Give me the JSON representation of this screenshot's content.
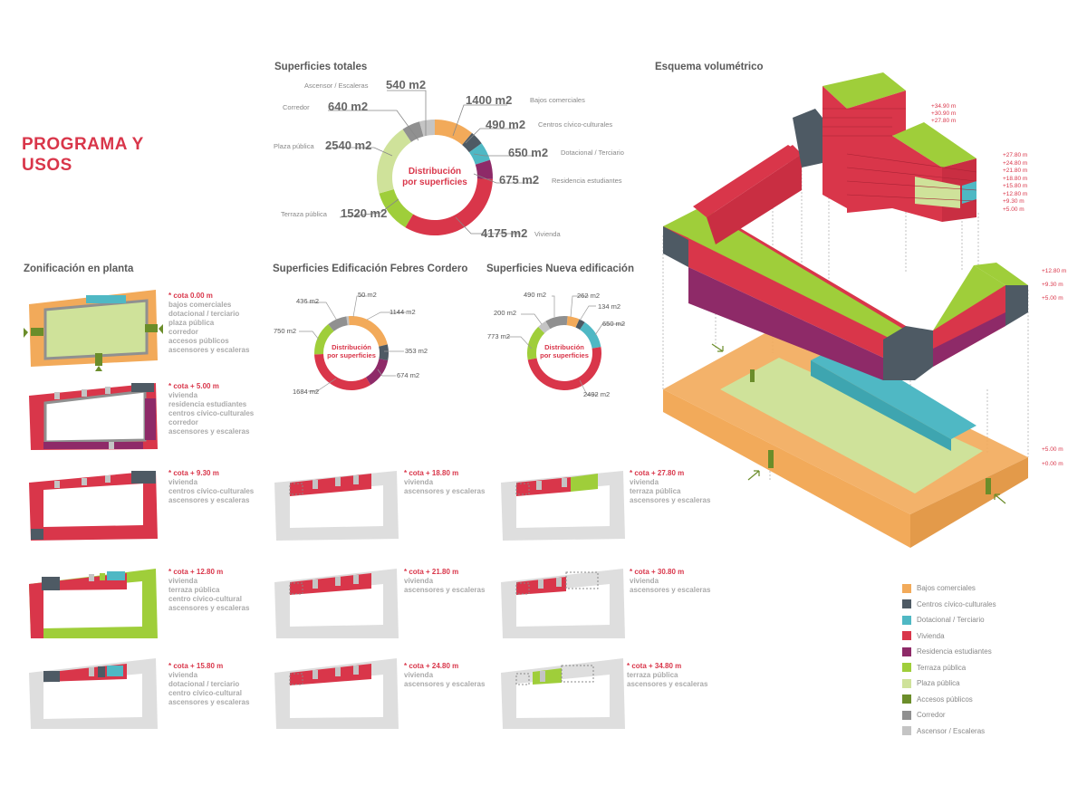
{
  "title": "PROGRAMA Y\nUSOS",
  "colors": {
    "bajos": "#f2aa5a",
    "civico": "#4e5a64",
    "dotacional": "#4fb8c4",
    "vivienda": "#d9364a",
    "residencia": "#8e2a68",
    "terraza": "#9fce3a",
    "plaza": "#cfe29a",
    "accesos": "#6b8d2a",
    "corredor": "#909090",
    "ascensor": "#c4c4c4"
  },
  "superficies_totales": {
    "title": "Superficies totales",
    "center_label": [
      "Distribución",
      "por superficies"
    ],
    "items": [
      {
        "value": "1400 m2",
        "label": "Bajos comerciales"
      },
      {
        "value": "490 m2",
        "label": "Centros cívico-culturales"
      },
      {
        "value": "650 m2",
        "label": "Dotacional / Terciario"
      },
      {
        "value": "675 m2",
        "label": "Residencia estudiantes"
      },
      {
        "value": "4175 m2",
        "label": "Vivienda"
      },
      {
        "value": "1520 m2",
        "label": "Terraza pública"
      },
      {
        "value": "2540 m2",
        "label": "Plaza pública"
      },
      {
        "value": "640 m2",
        "label": "Corredor"
      },
      {
        "value": "540 m2",
        "label": "Ascensor / Escaleras"
      }
    ]
  },
  "febres_cordero": {
    "title": "Superficies Edificación Febres Cordero",
    "center_label": [
      "Distribución",
      "por superficies"
    ],
    "values": [
      "50 m2",
      "1144 m2",
      "353 m2",
      "674 m2",
      "1684 m2",
      "750 m2",
      "436 m2"
    ]
  },
  "nueva": {
    "title": "Superficies Nueva edificación",
    "center_label": [
      "Distribución",
      "por superficies"
    ],
    "values": [
      "262 m2",
      "134 m2",
      "650 m2",
      "2492 m2",
      "773 m2",
      "200 m2",
      "490 m2"
    ]
  },
  "chart_data": [
    {
      "type": "pie",
      "title": "Superficies totales",
      "categories": [
        "Bajos comerciales",
        "Centros cívico-culturales",
        "Dotacional / Terciario",
        "Residencia estudiantes",
        "Vivienda",
        "Terraza pública",
        "Plaza pública",
        "Corredor",
        "Ascensor / Escaleras"
      ],
      "values": [
        1400,
        490,
        650,
        675,
        4175,
        1520,
        2540,
        640,
        540
      ]
    },
    {
      "type": "pie",
      "title": "Superficies Edificación Febres Cordero",
      "categories": [
        "Ascensor / Escaleras",
        "Bajos comerciales",
        "Centros cívico-culturales",
        "Residencia estudiantes",
        "Vivienda",
        "Terraza pública",
        "Corredor"
      ],
      "values": [
        50,
        1144,
        353,
        674,
        1684,
        750,
        436
      ]
    },
    {
      "type": "pie",
      "title": "Superficies Nueva edificación",
      "categories": [
        "Bajos comerciales",
        "Centros cívico-culturales",
        "Dotacional / Terciario",
        "Vivienda",
        "Terraza pública",
        "Ascensor / Escaleras",
        "Corredor"
      ],
      "values": [
        262,
        134,
        650,
        2492,
        773,
        200,
        490
      ]
    }
  ],
  "zonificacion": {
    "title": "Zonificación en planta",
    "levels": [
      {
        "cota": "* cota 0.00 m",
        "lines": [
          "bajos comerciales",
          "dotacional / terciario",
          "plaza pública",
          "corredor",
          "accesos públicos",
          "ascensores y escaleras"
        ]
      },
      {
        "cota": "* cota + 5.00 m",
        "lines": [
          "vivienda",
          "residencia estudiantes",
          "centros cívico-culturales",
          "corredor",
          "ascensores y escaleras"
        ]
      },
      {
        "cota": "* cota + 9.30 m",
        "lines": [
          "vivienda",
          "centros cívico-culturales",
          "ascensores y escaleras"
        ]
      },
      {
        "cota": "* cota + 12.80 m",
        "lines": [
          "vivienda",
          "terraza pública",
          "centro cívico-cultural",
          "ascensores y escaleras"
        ]
      },
      {
        "cota": "* cota + 15.80 m",
        "lines": [
          "vivienda",
          "dotacional / terciario",
          "centro cívico-cultural",
          "ascensores y escaleras"
        ]
      },
      {
        "cota": "* cota + 18.80 m",
        "lines": [
          "vivienda",
          "ascensores y escaleras"
        ]
      },
      {
        "cota": "* cota + 21.80 m",
        "lines": [
          "vivienda",
          "ascensores y escaleras"
        ]
      },
      {
        "cota": "* cota + 24.80 m",
        "lines": [
          "vivienda",
          "ascensores y escaleras"
        ]
      },
      {
        "cota": "* cota + 27.80 m",
        "lines": [
          "vivienda",
          "terraza pública",
          "ascensores y escaleras"
        ]
      },
      {
        "cota": "* cota + 30.80 m",
        "lines": [
          "vivienda",
          "ascensores y escaleras"
        ]
      },
      {
        "cota": "* cota + 34.80 m",
        "lines": [
          "terraza pública",
          "ascensores y escaleras"
        ]
      }
    ]
  },
  "esquema": {
    "title": "Esquema volumétrico",
    "top_levels": [
      "+34.90 m",
      "+30.90 m",
      "+27.80 m"
    ],
    "mid_levels": [
      "+27.80 m",
      "+24.80 m",
      "+21.80 m",
      "+18.80 m",
      "+15.80 m",
      "+12.80 m",
      "+9.30 m",
      "+5.00 m"
    ],
    "right_levels": [
      "+12.80 m",
      "+9.30 m",
      "+5.00 m"
    ],
    "base_levels": [
      "+5.00 m",
      "+0.00 m"
    ]
  },
  "legend": [
    {
      "label": "Bajos comerciales",
      "color": "#f2aa5a"
    },
    {
      "label": "Centros cívico-culturales",
      "color": "#4e5a64"
    },
    {
      "label": "Dotacional / Terciario",
      "color": "#4fb8c4"
    },
    {
      "label": "Vivienda",
      "color": "#d9364a"
    },
    {
      "label": "Residencia estudiantes",
      "color": "#8e2a68"
    },
    {
      "label": "Terraza pública",
      "color": "#9fce3a"
    },
    {
      "label": "Plaza pública",
      "color": "#cfe29a"
    },
    {
      "label": "Accesos públicos",
      "color": "#6b8d2a"
    },
    {
      "label": "Corredor",
      "color": "#909090"
    },
    {
      "label": "Ascensor / Escaleras",
      "color": "#c4c4c4"
    }
  ]
}
